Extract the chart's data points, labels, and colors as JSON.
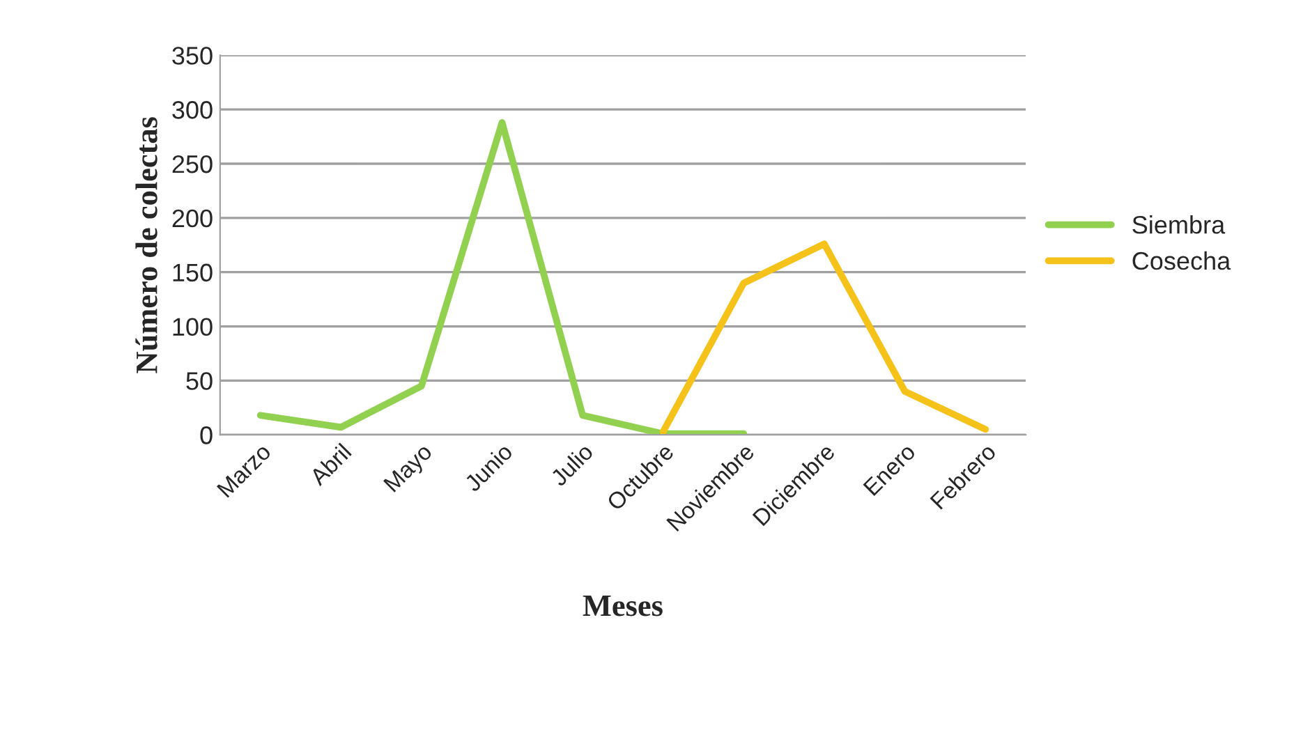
{
  "chart_data": {
    "type": "line",
    "xlabel": "Meses",
    "ylabel": "Número de colectas",
    "categories": [
      "Marzo",
      "Abril",
      "Mayo",
      "Junio",
      "Julio",
      "Octubre",
      "Noviembre",
      "Diciembre",
      "Enero",
      "Febrero"
    ],
    "series": [
      {
        "name": "Siembra",
        "color": "#92d050",
        "values": [
          18,
          7,
          45,
          288,
          18,
          1,
          1,
          null,
          null,
          null
        ]
      },
      {
        "name": "Cosecha",
        "color": "#f5c21a",
        "values": [
          null,
          null,
          null,
          null,
          null,
          3,
          140,
          176,
          40,
          5
        ]
      }
    ],
    "ylim": [
      0,
      350
    ],
    "yticks": [
      0,
      50,
      100,
      150,
      200,
      250,
      300,
      350
    ],
    "grid": "y",
    "legend": "right",
    "marker": "none",
    "line_style": "solid"
  }
}
